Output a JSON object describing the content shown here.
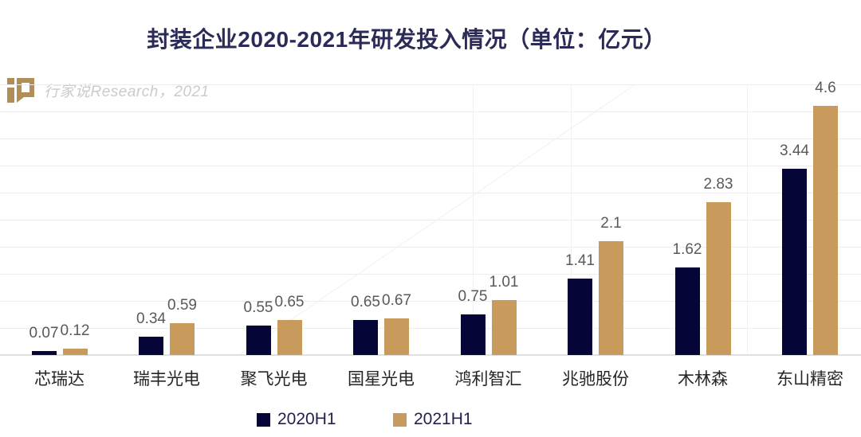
{
  "title": "封装企业2020-2021年研发投入情况（单位：亿元）",
  "watermark": {
    "text": "行家说Research，2021",
    "logo_icon": "hangjiashuo-logo",
    "logo_color": "#b08e55"
  },
  "colors": {
    "series_2020": "#050538",
    "series_2021": "#c89a5c",
    "title_text": "#2b2b58",
    "value_label": "#595959",
    "category_label": "#262626",
    "gridline": "#ececec"
  },
  "chart_data": {
    "type": "bar",
    "title": "封装企业2020-2021年研发投入情况（单位：亿元）",
    "categories": [
      "芯瑞达",
      "瑞丰光电",
      "聚飞光电",
      "国星光电",
      "鸿利智汇",
      "兆驰股份",
      "木林森",
      "东山精密"
    ],
    "series": [
      {
        "name": "2020H1",
        "color": "#050538",
        "values": [
          0.07,
          0.34,
          0.55,
          0.65,
          0.75,
          1.41,
          1.62,
          3.44
        ]
      },
      {
        "name": "2021H1",
        "color": "#c89a5c",
        "values": [
          0.12,
          0.59,
          0.65,
          0.67,
          1.01,
          2.1,
          2.83,
          4.6
        ]
      }
    ],
    "xlabel": "",
    "ylabel": "",
    "ylim": [
      0,
      5
    ],
    "y_step": 0.5,
    "grid": true,
    "y_axis_tick_labels_visible": false,
    "value_labels_visible": true,
    "legend_position": "bottom"
  }
}
